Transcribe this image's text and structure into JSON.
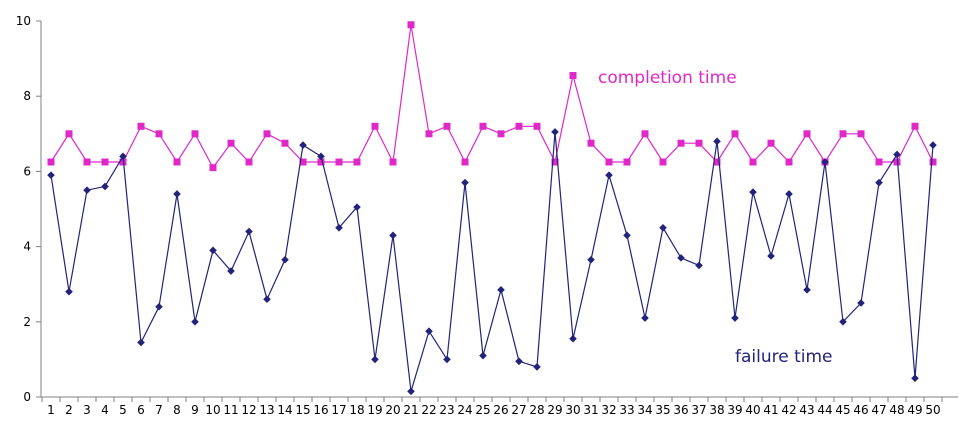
{
  "chart_data": {
    "type": "line",
    "x": [
      1,
      2,
      3,
      4,
      5,
      6,
      7,
      8,
      9,
      10,
      11,
      12,
      13,
      14,
      15,
      16,
      17,
      18,
      19,
      20,
      21,
      22,
      23,
      24,
      25,
      26,
      27,
      28,
      29,
      30,
      31,
      32,
      33,
      34,
      35,
      36,
      37,
      38,
      39,
      40,
      41,
      42,
      43,
      44,
      45,
      46,
      47,
      48,
      49,
      50
    ],
    "x_tick_labels": [
      "1",
      "2",
      "3",
      "4",
      "5",
      "6",
      "7",
      "8",
      "9",
      "10",
      "11",
      "12",
      "13",
      "14",
      "15",
      "16",
      "17",
      "18",
      "19",
      "20",
      "21",
      "22",
      "23",
      "24",
      "25",
      "26",
      "27",
      "28",
      "29",
      "30",
      "31",
      "32",
      "33",
      "34",
      "35",
      "36",
      "37",
      "38",
      "39",
      "40",
      "41",
      "42",
      "43",
      "44",
      "45",
      "46",
      "47",
      "48",
      "49",
      "50"
    ],
    "y_tick_labels": [
      "0",
      "2",
      "4",
      "6",
      "8",
      "10"
    ],
    "ylim": [
      0,
      10
    ],
    "grid": false,
    "title": "",
    "xlabel": "",
    "ylabel": "",
    "series": [
      {
        "name": "completion time",
        "color": "#e028c8",
        "marker": "square",
        "values": [
          6.25,
          7.0,
          6.25,
          6.25,
          6.25,
          7.2,
          7.0,
          6.25,
          7.0,
          6.1,
          6.75,
          6.25,
          7.0,
          6.75,
          6.25,
          6.25,
          6.25,
          6.25,
          7.2,
          6.25,
          9.9,
          7.0,
          7.2,
          6.25,
          7.2,
          7.0,
          7.2,
          7.2,
          6.25,
          8.55,
          6.75,
          6.25,
          6.25,
          7.0,
          6.25,
          6.75,
          6.75,
          6.25,
          7.0,
          6.25,
          6.75,
          6.25,
          7.0,
          6.25,
          7.0,
          7.0,
          6.25,
          6.25,
          7.2,
          6.25
        ]
      },
      {
        "name": "failure time",
        "color": "#22237a",
        "marker": "diamond",
        "values": [
          5.9,
          2.8,
          5.5,
          5.6,
          6.4,
          1.45,
          2.4,
          5.4,
          2.0,
          3.9,
          3.35,
          4.4,
          2.6,
          3.65,
          6.7,
          6.4,
          4.5,
          5.05,
          1.0,
          4.3,
          0.15,
          1.75,
          1.0,
          5.7,
          1.1,
          2.85,
          0.95,
          0.8,
          7.05,
          1.55,
          3.65,
          5.9,
          4.3,
          2.1,
          4.5,
          3.7,
          3.5,
          6.8,
          2.1,
          5.45,
          3.75,
          5.4,
          2.85,
          6.25,
          2.0,
          2.5,
          5.7,
          6.45,
          0.5,
          6.7
        ]
      }
    ]
  }
}
